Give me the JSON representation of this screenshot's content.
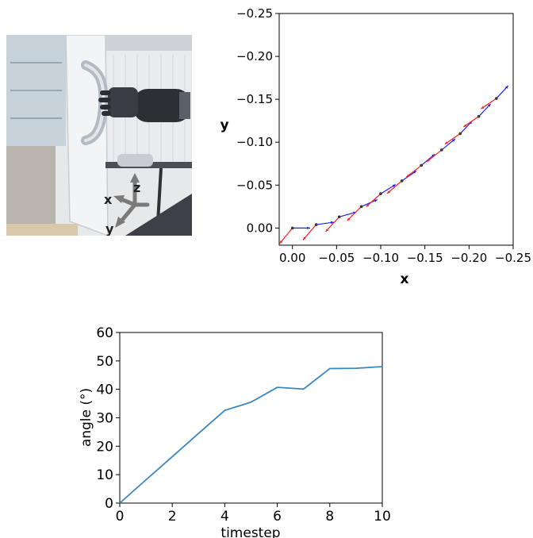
{
  "photo": {
    "axis_labels": {
      "x": "x",
      "y": "y",
      "z": "z"
    },
    "colors": {
      "wall": "#dcdfe3",
      "door": "#f4f5f7",
      "handle": "#b9bec6",
      "robot": "#2b2e33",
      "axis_arrow": "#6e6e6e"
    }
  },
  "chart_data": [
    {
      "type": "scatter",
      "title": "",
      "xlabel": "x",
      "ylabel": "y",
      "xlim": [
        0.015,
        -0.25
      ],
      "ylim": [
        0.02,
        -0.25
      ],
      "xticks": [
        "0.00",
        "−0.05",
        "−0.10",
        "−0.15",
        "−0.20",
        "−0.25"
      ],
      "yticks": [
        "0.00",
        "−0.05",
        "−0.10",
        "−0.15",
        "−0.20",
        "−0.25"
      ],
      "xtick_values": [
        0.0,
        -0.05,
        -0.1,
        -0.15,
        -0.2,
        -0.25
      ],
      "ytick_values": [
        0.0,
        -0.05,
        -0.1,
        -0.15,
        -0.2,
        -0.25
      ],
      "points": [
        {
          "x": 0.0,
          "y": 0.0
        },
        {
          "x": -0.027,
          "y": -0.004
        },
        {
          "x": -0.053,
          "y": -0.013
        },
        {
          "x": -0.078,
          "y": -0.025
        },
        {
          "x": -0.1,
          "y": -0.04
        },
        {
          "x": -0.124,
          "y": -0.055
        },
        {
          "x": -0.146,
          "y": -0.073
        },
        {
          "x": -0.169,
          "y": -0.091
        },
        {
          "x": -0.19,
          "y": -0.11
        },
        {
          "x": -0.211,
          "y": -0.13
        },
        {
          "x": -0.231,
          "y": -0.151
        }
      ],
      "directions": [
        {
          "angle_deg": 0.0
        },
        {
          "angle_deg": 8.0
        },
        {
          "angle_deg": 16.0
        },
        {
          "angle_deg": 24.0
        },
        {
          "angle_deg": 32.5
        },
        {
          "angle_deg": 35.5
        },
        {
          "angle_deg": 40.5
        },
        {
          "angle_deg": 40.0
        },
        {
          "angle_deg": 47.3
        },
        {
          "angle_deg": 47.4
        },
        {
          "angle_deg": 48.0
        }
      ],
      "arrow_length": 0.02,
      "colors": {
        "x_axis_arrow": "#1f1fff",
        "y_axis_arrow": "#ff2020",
        "point": "#333333"
      },
      "grid": false
    },
    {
      "type": "line",
      "title": "",
      "xlabel": "timestep",
      "ylabel": "angle (°)",
      "xlim": [
        0,
        10
      ],
      "ylim": [
        0,
        60
      ],
      "xticks": [
        0,
        2,
        4,
        6,
        8,
        10
      ],
      "yticks": [
        0,
        10,
        20,
        30,
        40,
        50,
        60
      ],
      "series": [
        {
          "x": [
            0,
            1,
            2,
            3,
            4,
            5,
            6,
            7,
            8,
            9,
            10
          ],
          "values": [
            0,
            8.2,
            16.3,
            24.5,
            32.6,
            35.5,
            40.7,
            40.1,
            47.3,
            47.4,
            48.0
          ]
        }
      ],
      "colors": {
        "line": "#3a86c0"
      },
      "grid": false
    }
  ]
}
